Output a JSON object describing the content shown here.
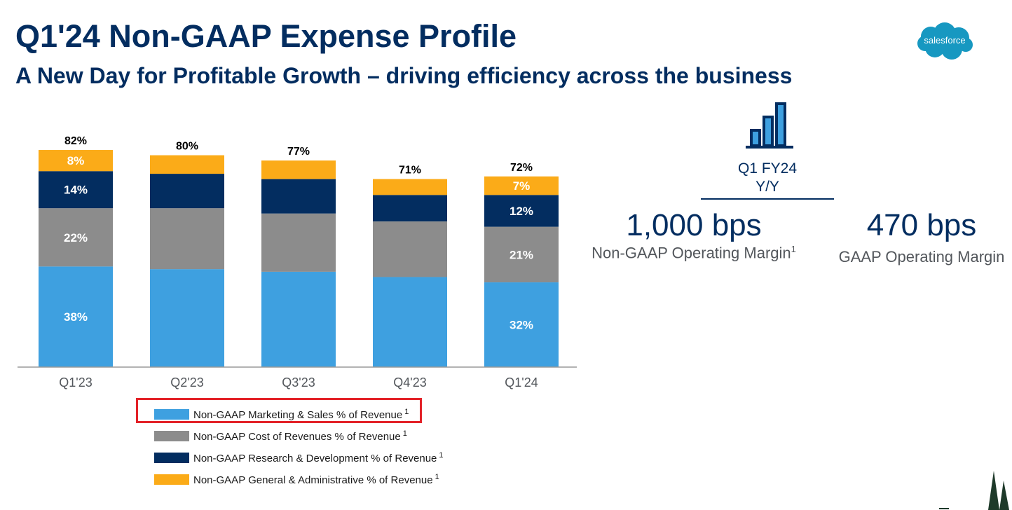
{
  "header": {
    "title": "Q1'24 Non-GAAP Expense Profile",
    "subtitle": "A New Day for Profitable Growth – driving efficiency across the business"
  },
  "logo": {
    "text": "salesforce",
    "color": "#1798c1"
  },
  "colors": {
    "marketing_sales": "#3ea0e0",
    "cost_of_revenues": "#8c8c8c",
    "research_development": "#032d60",
    "general_admin": "#fbab18",
    "title": "#032d60",
    "highlight": "#e32228"
  },
  "chart_data": {
    "type": "bar",
    "stacked": true,
    "categories": [
      "Q1'23",
      "Q2'23",
      "Q3'23",
      "Q4'23",
      "Q1'24"
    ],
    "totals": [
      82,
      80,
      77,
      71,
      72
    ],
    "total_labels": [
      "82%",
      "80%",
      "77%",
      "71%",
      "72%"
    ],
    "ylim": [
      0,
      100
    ],
    "series": [
      {
        "name": "Non-GAAP Marketing & Sales % of Revenue",
        "footnote": "1",
        "color": "#3ea0e0",
        "values": [
          38,
          37,
          36,
          34,
          32
        ],
        "labels": [
          "38%",
          null,
          null,
          null,
          "32%"
        ]
      },
      {
        "name": "Non-GAAP Cost of Revenues % of Revenue",
        "footnote": "1",
        "color": "#8c8c8c",
        "values": [
          22,
          23,
          22,
          21,
          21
        ],
        "labels": [
          "22%",
          null,
          null,
          null,
          "21%"
        ]
      },
      {
        "name": "Non-GAAP Research & Development % of Revenue",
        "footnote": "1",
        "color": "#032d60",
        "values": [
          14,
          13,
          13,
          10,
          12
        ],
        "labels": [
          "14%",
          null,
          null,
          null,
          "12%"
        ]
      },
      {
        "name": "Non-GAAP General & Administrative % of Revenue",
        "footnote": "1",
        "color": "#fbab18",
        "values": [
          8,
          7,
          7,
          6,
          7
        ],
        "labels": [
          "8%",
          null,
          null,
          null,
          "7%"
        ]
      }
    ],
    "legend_highlighted": "Non-GAAP Marketing & Sales % of Revenue",
    "grid": false
  },
  "kpi_panel": {
    "period_line1": "Q1 FY24",
    "period_line2": "Y/Y",
    "icon": "bar-chart-growth-icon",
    "kpis": [
      {
        "value": "1,000 bps",
        "label": "Non-GAAP Operating Margin",
        "footnote": "1"
      },
      {
        "value": "470 bps",
        "label": "GAAP Operating Margin",
        "footnote": ""
      }
    ]
  }
}
